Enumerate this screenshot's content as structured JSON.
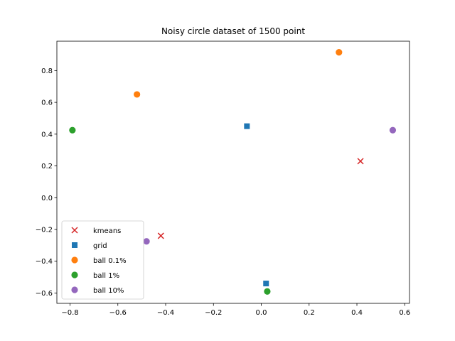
{
  "chart_data": {
    "type": "scatter",
    "title": "Noisy circle dataset of 1500 point",
    "xlabel": "",
    "ylabel": "",
    "xlim": [
      -0.855,
      0.62
    ],
    "ylim": [
      -0.665,
      0.985
    ],
    "xticks": [
      -0.8,
      -0.6,
      -0.4,
      -0.2,
      0.0,
      0.2,
      0.4,
      0.6
    ],
    "xtick_labels": [
      "−0.8",
      "−0.6",
      "−0.4",
      "−0.2",
      "0.0",
      "0.2",
      "0.4",
      "0.6"
    ],
    "yticks": [
      -0.6,
      -0.4,
      -0.2,
      0.0,
      0.2,
      0.4,
      0.6,
      0.8
    ],
    "ytick_labels": [
      "−0.6",
      "−0.4",
      "−0.2",
      "0.0",
      "0.2",
      "0.4",
      "0.6",
      "0.8"
    ],
    "grid": false,
    "legend_position": "lower-left",
    "series": [
      {
        "name": "kmeans",
        "marker": "x",
        "color": "#d62728",
        "points": [
          [
            -0.42,
            -0.24
          ],
          [
            0.415,
            0.23
          ]
        ]
      },
      {
        "name": "grid",
        "marker": "square",
        "color": "#1f77b4",
        "points": [
          [
            -0.06,
            0.45
          ],
          [
            0.02,
            -0.54
          ]
        ]
      },
      {
        "name": "ball 0.1%",
        "marker": "circle",
        "color": "#ff7f0e",
        "points": [
          [
            -0.52,
            0.65
          ],
          [
            0.325,
            0.915
          ]
        ]
      },
      {
        "name": "ball 1%",
        "marker": "circle",
        "color": "#2ca02c",
        "points": [
          [
            -0.79,
            0.425
          ],
          [
            0.025,
            -0.59
          ]
        ]
      },
      {
        "name": "ball 10%",
        "marker": "circle",
        "color": "#9467bd",
        "points": [
          [
            -0.48,
            -0.275
          ],
          [
            0.55,
            0.425
          ]
        ]
      }
    ]
  }
}
